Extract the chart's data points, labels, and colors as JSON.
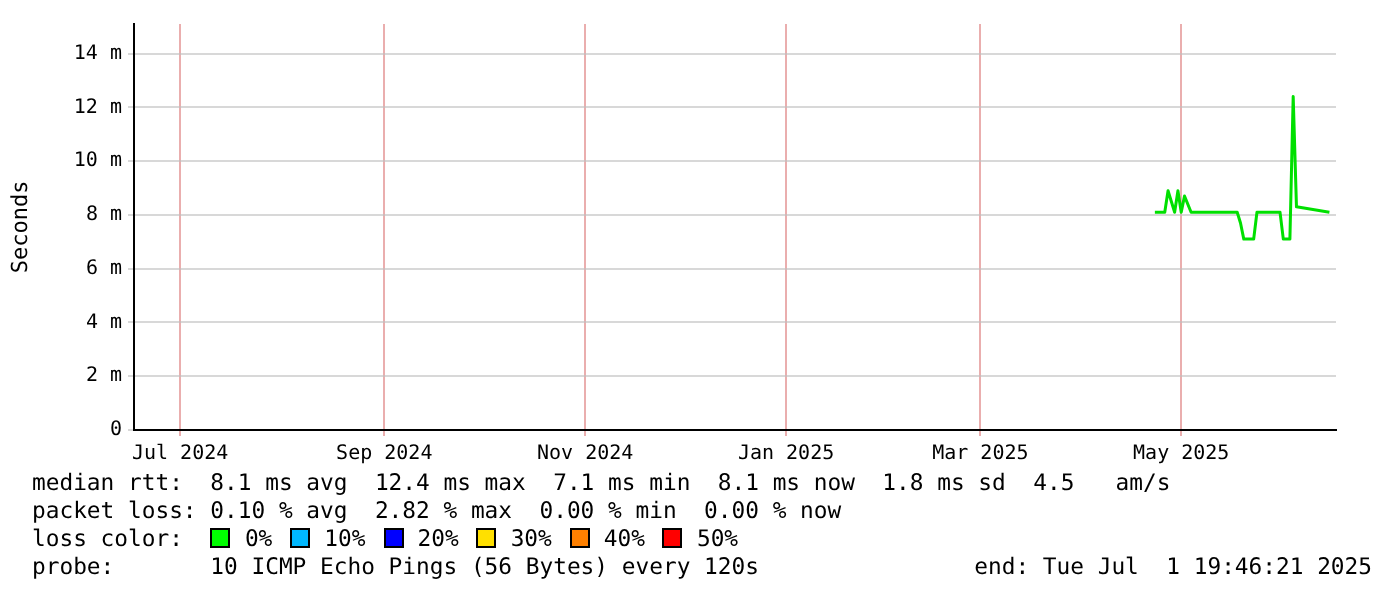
{
  "chart_data": {
    "type": "line",
    "ylabel": "Seconds",
    "x": [
      "2025-05-07",
      "2025-05-10",
      "2025-05-11",
      "2025-05-13",
      "2025-05-14",
      "2025-05-15",
      "2025-05-16",
      "2025-05-18",
      "2025-06-01",
      "2025-06-02",
      "2025-06-03",
      "2025-06-06",
      "2025-06-07",
      "2025-06-14",
      "2025-06-15",
      "2025-06-17",
      "2025-06-18",
      "2025-06-19",
      "2025-06-29"
    ],
    "series": [
      {
        "color": "#00e000",
        "values": [
          8.1,
          8.1,
          8.9,
          8.1,
          8.9,
          8.1,
          8.7,
          8.1,
          8.1,
          7.7,
          7.1,
          7.1,
          8.1,
          8.1,
          7.1,
          7.1,
          12.4,
          8.3,
          8.1
        ]
      }
    ],
    "xlim": [
      "2024-07-01",
      "2025-07-01"
    ],
    "xticks": [
      {
        "value": "2024-07-15",
        "label": "Jul 2024"
      },
      {
        "value": "2024-09-15",
        "label": "Sep 2024"
      },
      {
        "value": "2024-11-15",
        "label": "Nov 2024"
      },
      {
        "value": "2025-01-15",
        "label": "Jan 2025"
      },
      {
        "value": "2025-03-15",
        "label": "Mar 2025"
      },
      {
        "value": "2025-05-15",
        "label": "May 2025"
      }
    ],
    "ylim": [
      0,
      15.1
    ],
    "yticks": [
      0,
      {
        "value": 2,
        "label": "2 m"
      },
      {
        "value": 4,
        "label": "4 m"
      },
      {
        "value": 6,
        "label": "6 m"
      },
      {
        "value": 8,
        "label": "8 m"
      },
      {
        "value": 10,
        "label": "10 m"
      },
      {
        "value": 12,
        "label": "12 m"
      },
      {
        "value": 14,
        "label": "14 m"
      }
    ],
    "grid": true,
    "legend": false,
    "marker": "none",
    "line_style": "solid",
    "annotations": [
      "median rtt:  8.1 ms avg  12.4 ms max  7.1 ms min  8.1 ms now  1.8 ms sd  4.5   am/s",
      "packet loss: 0.10 % avg  2.82 % max  0.00 % min  0.00 % now",
      "loss color:",
      "0%",
      "10%",
      "20%",
      "30%",
      "40%",
      "50%",
      "probe:       10 ICMP Echo Pings (56 Bytes) every 120s",
      "end: Tue Jul  1 19:46:21 2025"
    ]
  }
}
